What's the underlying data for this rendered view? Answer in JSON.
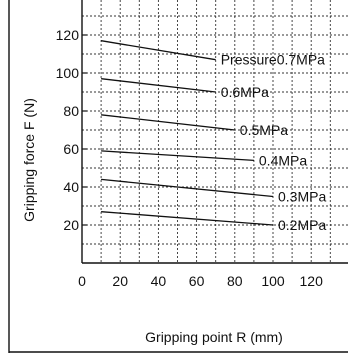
{
  "chart_data": {
    "type": "line",
    "title": "",
    "xlabel": "Gripping point R (mm)",
    "ylabel": "Gripping force  F (N)",
    "xlim": [
      0,
      140
    ],
    "ylim": [
      0,
      140
    ],
    "x_ticks": [
      0,
      20,
      40,
      60,
      80,
      100,
      120
    ],
    "y_ticks": [
      20,
      40,
      60,
      80,
      100,
      120
    ],
    "grid": true,
    "series": [
      {
        "name": "Pressure0.7MPa",
        "x": [
          10,
          70
        ],
        "y": [
          117,
          107
        ]
      },
      {
        "name": "0.6MPa",
        "x": [
          10,
          70
        ],
        "y": [
          97,
          90
        ]
      },
      {
        "name": "0.5MPa",
        "x": [
          10,
          80
        ],
        "y": [
          78,
          70
        ]
      },
      {
        "name": "0.4MPa",
        "x": [
          10,
          90
        ],
        "y": [
          59,
          54
        ]
      },
      {
        "name": "0.3MPa",
        "x": [
          10,
          100
        ],
        "y": [
          44,
          35
        ]
      },
      {
        "name": "0.2MPa",
        "x": [
          10,
          100
        ],
        "y": [
          27,
          20
        ]
      }
    ],
    "colors": {
      "line": "#111111",
      "grid": "#333333"
    }
  }
}
